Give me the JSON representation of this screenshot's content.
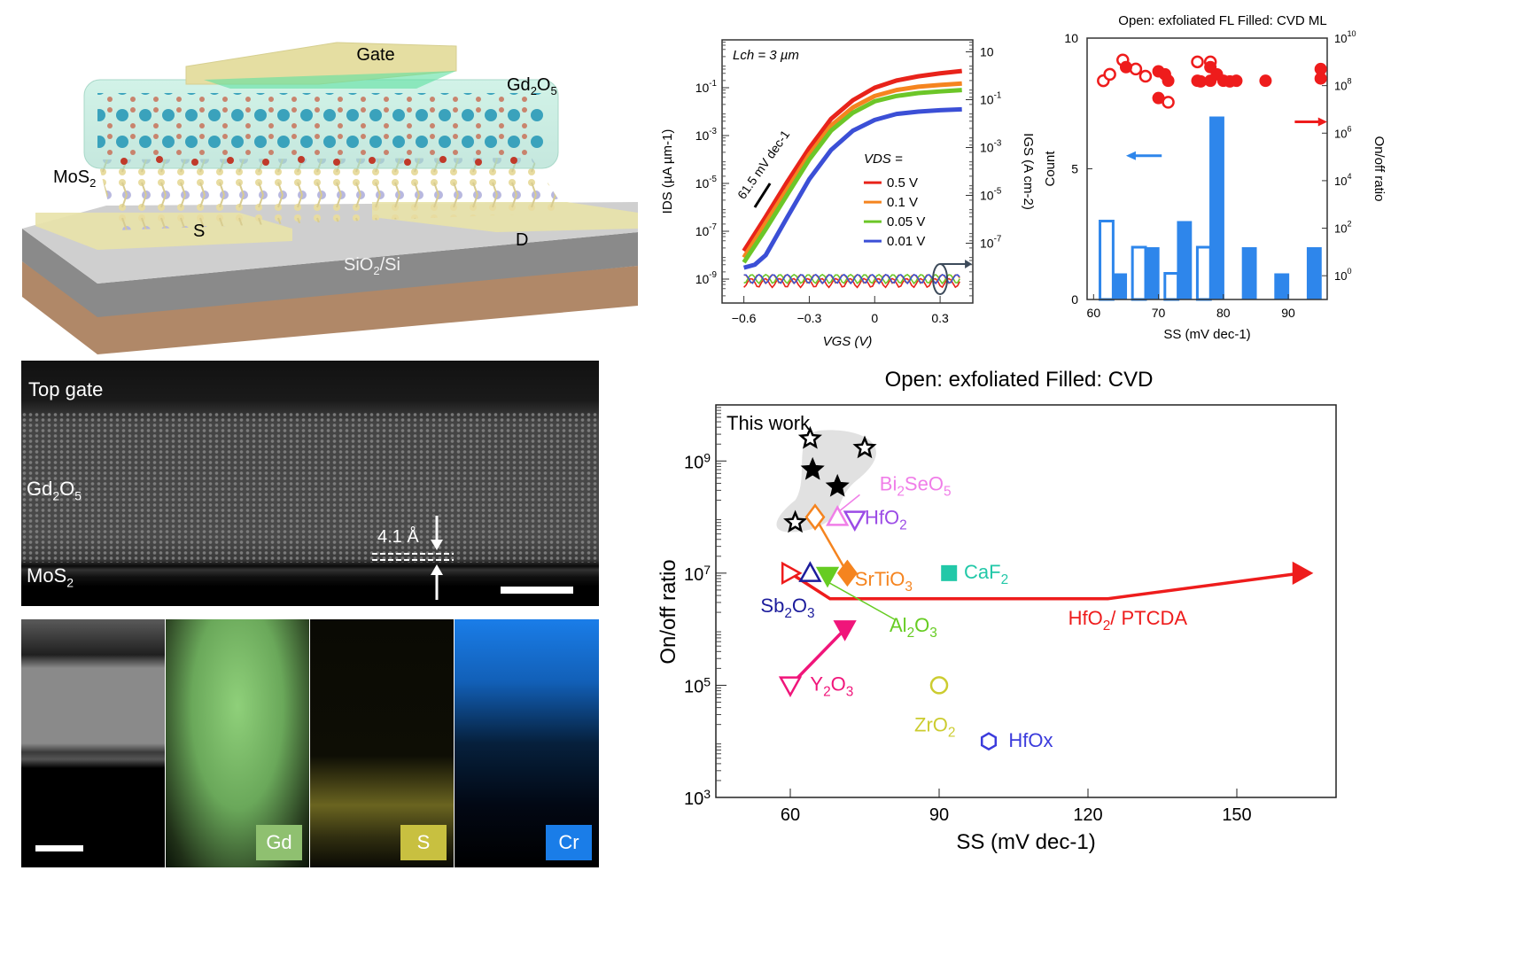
{
  "schematic": {
    "labels": {
      "gate": "Gate",
      "oxide": "Gd2O5",
      "channel": "MoS2",
      "source": "S",
      "drain": "D",
      "substrate": "SiO2/Si"
    },
    "colors": {
      "oxide_box": "#9fdcc8",
      "gd_atom": "#2a9ab8",
      "o_atom": "#c8503c",
      "mo_atom": "#b8b8e0",
      "s_atom": "#e8dca0",
      "contacts": "#e8e2a8",
      "sio2": "#8a8a8a",
      "si": "#b08868"
    }
  },
  "tem": {
    "labels": {
      "top_gate": "Top gate",
      "oxide": "Gd2O5",
      "channel": "MoS2",
      "spacing": "4.1 Å"
    }
  },
  "eds": {
    "maps": [
      {
        "element": "",
        "color": "#888888"
      },
      {
        "element": "Gd",
        "color": "#8fcf7a"
      },
      {
        "element": "S",
        "color": "#c8c040"
      },
      {
        "element": "Cr",
        "color": "#1a7de8"
      }
    ]
  },
  "chart_data": [
    {
      "type": "line",
      "title": "",
      "annotation_lch": "Lch = 3 µm",
      "annotation_ss": "61.5 mV dec-1",
      "xlabel": "VGS (V)",
      "ylabel": "IDS (µA µm-1)",
      "ylabel_right": "IGS (A cm-2)",
      "x_ticks": [
        "-0.6",
        "-0.3",
        "0",
        "0.3"
      ],
      "xlim": [
        -0.7,
        0.45
      ],
      "y_scale": "log",
      "y_ticks": [
        "10^-1",
        "10^-3",
        "10^-5",
        "10^-7",
        "10^-9"
      ],
      "ylim": [
        1e-10,
        10
      ],
      "y_right_ticks": [
        "10",
        "10^-1",
        "10^-3",
        "10^-5",
        "10^-7"
      ],
      "legend_title": "VDS =",
      "legend_position": "center-right",
      "series": [
        {
          "name": "0.5 V",
          "color": "#e8231a",
          "x": [
            -0.6,
            -0.5,
            -0.4,
            -0.3,
            -0.2,
            -0.1,
            0,
            0.1,
            0.2,
            0.3,
            0.4
          ],
          "y": [
            1.5e-08,
            4e-07,
            1.2e-05,
            0.0003,
            0.005,
            0.03,
            0.1,
            0.2,
            0.3,
            0.4,
            0.5
          ]
        },
        {
          "name": "0.1 V",
          "color": "#f5841f",
          "x": [
            -0.6,
            -0.5,
            -0.4,
            -0.3,
            -0.2,
            -0.1,
            0,
            0.1,
            0.2,
            0.3,
            0.4
          ],
          "y": [
            8e-09,
            2.2e-07,
            6e-06,
            0.00016,
            0.0026,
            0.015,
            0.045,
            0.08,
            0.11,
            0.13,
            0.15
          ]
        },
        {
          "name": "0.05 V",
          "color": "#6cc628",
          "x": [
            -0.6,
            -0.5,
            -0.4,
            -0.3,
            -0.2,
            -0.1,
            0,
            0.1,
            0.2,
            0.3,
            0.4
          ],
          "y": [
            5e-09,
            1.2e-07,
            3.5e-06,
            0.0001,
            0.0016,
            0.009,
            0.027,
            0.045,
            0.06,
            0.07,
            0.08
          ]
        },
        {
          "name": "0.01 V",
          "color": "#3b4fd6",
          "x": [
            -0.6,
            -0.55,
            -0.5,
            -0.4,
            -0.3,
            -0.2,
            -0.1,
            0,
            0.1,
            0.2,
            0.3,
            0.4
          ],
          "y": [
            3e-09,
            4e-09,
            1e-08,
            4e-07,
            1.5e-05,
            0.00025,
            0.0016,
            0.0045,
            0.008,
            0.01,
            0.0115,
            0.0125
          ]
        }
      ],
      "gate_leakage_level": 1e-09
    },
    {
      "type": "bar",
      "title": "Open: exfoliated FL  Filled: CVD ML",
      "xlabel": "SS (mV dec-1)",
      "ylabel": "Count",
      "ylabel_right": "On/off ratio",
      "x_ticks": [
        "60",
        "70",
        "80",
        "90"
      ],
      "xlim": [
        59,
        96
      ],
      "y_ticks": [
        "0",
        "5",
        "10"
      ],
      "ylim": [
        0,
        10
      ],
      "y_right_ticks": [
        "10^0",
        "10^2",
        "10^4",
        "10^6",
        "10^8",
        "10^10"
      ],
      "y_right_lim": [
        0.1,
        10000000000.0
      ],
      "bar_color": "#2e86eb",
      "histogram": {
        "open": [
          {
            "bin": 62,
            "count": 3
          },
          {
            "bin": 67,
            "count": 2
          },
          {
            "bin": 72,
            "count": 1
          },
          {
            "bin": 77,
            "count": 2
          }
        ],
        "filled": [
          {
            "bin": 64,
            "count": 1
          },
          {
            "bin": 69,
            "count": 2
          },
          {
            "bin": 74,
            "count": 3
          },
          {
            "bin": 79,
            "count": 7
          },
          {
            "bin": 84,
            "count": 2
          },
          {
            "bin": 89,
            "count": 1
          },
          {
            "bin": 94,
            "count": 2
          }
        ]
      },
      "scatter_color": "#ee1c1c",
      "scatter_open": [
        [
          61.5,
          160000000.0
        ],
        [
          62.5,
          300000000.0
        ],
        [
          64.5,
          1200000000.0
        ],
        [
          66.5,
          500000000.0
        ],
        [
          68,
          250000000.0
        ],
        [
          71.5,
          20000000.0
        ],
        [
          76,
          1000000000.0
        ],
        [
          78,
          1000000000.0
        ]
      ],
      "scatter_filled": [
        [
          65,
          600000000.0
        ],
        [
          70,
          400000000.0
        ],
        [
          70,
          30000000.0
        ],
        [
          71,
          300000000.0
        ],
        [
          71.5,
          160000000.0
        ],
        [
          76,
          160000000.0
        ],
        [
          76.5,
          150000000.0
        ],
        [
          78,
          160000000.0
        ],
        [
          78,
          600000000.0
        ],
        [
          79,
          300000000.0
        ],
        [
          80,
          160000000.0
        ],
        [
          81,
          150000000.0
        ],
        [
          82,
          160000000.0
        ],
        [
          86.5,
          160000000.0
        ],
        [
          95,
          500000000.0
        ],
        [
          95,
          200000000.0
        ]
      ]
    },
    {
      "type": "scatter",
      "title": "Open: exfoliated   Filled: CVD",
      "annotation": "This work",
      "xlabel": "SS (mV dec-1)",
      "ylabel": "On/off ratio",
      "x_ticks": [
        "60",
        "90",
        "120",
        "150"
      ],
      "xlim": [
        45,
        170
      ],
      "y_scale": "log",
      "y_ticks": [
        "10^3",
        "10^5",
        "10^7",
        "10^9"
      ],
      "ylim": [
        1000.0,
        10000000000.0
      ],
      "points": [
        {
          "label": "This work",
          "marker": "star-open",
          "color": "#000000",
          "x": 64,
          "y": 2500000000.0
        },
        {
          "label": "This work",
          "marker": "star-open",
          "color": "#000000",
          "x": 75,
          "y": 1700000000.0
        },
        {
          "label": "This work",
          "marker": "star-filled",
          "color": "#000000",
          "x": 64.5,
          "y": 700000000.0
        },
        {
          "label": "This work",
          "marker": "star-filled",
          "color": "#000000",
          "x": 69.5,
          "y": 350000000.0
        },
        {
          "label": "This work",
          "marker": "star-open",
          "color": "#000000",
          "x": 61,
          "y": 80000000.0
        },
        {
          "label": "Bi2SeO5",
          "marker": "triangle-up-open",
          "color": "#f07ee8",
          "x": 69.5,
          "y": 100000000.0
        },
        {
          "label": "HfO2",
          "marker": "triangle-down-open",
          "color": "#9b4be6",
          "x": 73,
          "y": 90000000.0
        },
        {
          "label": "SrTiO3",
          "marker": "diamond-open",
          "color": "#f5841f",
          "x": 65,
          "y": 100000000.0
        },
        {
          "label": "SrTiO3",
          "marker": "diamond-filled",
          "color": "#f5841f",
          "x": 71.5,
          "y": 10000000.0
        },
        {
          "label": "Sb2O3",
          "marker": "triangle-up-open",
          "color": "#1c1c9c",
          "x": 64,
          "y": 10000000.0
        },
        {
          "label": "Al2O3",
          "marker": "triangle-down-filled",
          "color": "#66cc22",
          "x": 67.5,
          "y": 9000000.0
        },
        {
          "label": "CaF2",
          "marker": "square-filled",
          "color": "#22c8a8",
          "x": 92,
          "y": 10000000.0
        },
        {
          "label": "HfO2/ PTCDA",
          "marker": "triangle-right-open",
          "color": "#ee1c1c",
          "x": 60,
          "y": 10000000.0
        },
        {
          "label": "HfO2/ PTCDA",
          "marker": "triangle-right-filled",
          "color": "#ee1c1c",
          "x": 163,
          "y": 10000000.0
        },
        {
          "label": "Y2O3",
          "marker": "triangle-down-open",
          "color": "#f0157a",
          "x": 60,
          "y": 100000.0
        },
        {
          "label": "Y2O3",
          "marker": "triangle-down-filled",
          "color": "#f0157a",
          "x": 71,
          "y": 1000000.0
        },
        {
          "label": "ZrO2",
          "marker": "circle-open",
          "color": "#cccc30",
          "x": 90,
          "y": 100000.0
        },
        {
          "label": "HfOx",
          "marker": "hexagon-open",
          "color": "#3b3bdc",
          "x": 100,
          "y": 10000.0
        }
      ],
      "arrows": [
        {
          "label": "SrTiO3",
          "color": "#f5841f",
          "from": [
            65,
            100000000.0
          ],
          "to": [
            71.5,
            10000000.0
          ]
        },
        {
          "label": "HfO2/ PTCDA",
          "color": "#ee1c1c",
          "path": [
            [
              60,
              10000000.0
            ],
            [
              68,
              3500000.0
            ],
            [
              124,
              3500000.0
            ],
            [
              163,
              10000000.0
            ]
          ]
        },
        {
          "label": "Y2O3",
          "color": "#f0157a",
          "from": [
            60,
            100000.0
          ],
          "to": [
            71,
            1000000.0
          ]
        }
      ],
      "labels": {
        "bi2seo5": "Bi2SeO5",
        "hfo2": "HfO2",
        "srtio3": "SrTiO3",
        "caf2": "CaF2",
        "sb2o3": "Sb2O3",
        "al2o3": "Al2O3",
        "hfo2_ptcda": "HfO2/ PTCDA",
        "y2o3": "Y2O3",
        "zro2": "ZrO2",
        "hfox": "HfOx"
      }
    }
  ]
}
